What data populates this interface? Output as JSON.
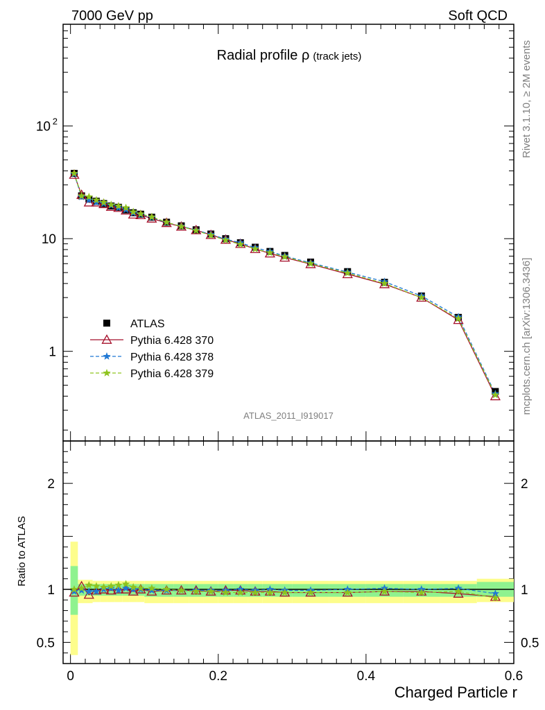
{
  "header": {
    "left": "7000 GeV pp",
    "right": "Soft QCD"
  },
  "side_labels": {
    "rivet": "Rivet 3.1.10, ≥ 2M events",
    "mcplots": "mcplots.cern.ch [arXiv:1306.3436]"
  },
  "plot_title": {
    "main": "Radial profile ρ",
    "sub": "(track jets)"
  },
  "analysis_label": "ATLAS_2011_I919017",
  "x_axis_label": "Charged Particle r",
  "ratio_axis_label": "Ratio to ATLAS",
  "legend": [
    {
      "label": "ATLAS",
      "color": "#000000",
      "marker": "square"
    },
    {
      "label": "Pythia 6.428 370",
      "color": "#a50f2a",
      "marker": "open-triangle"
    },
    {
      "label": "Pythia 6.428 378",
      "color": "#1f78d4",
      "marker": "star"
    },
    {
      "label": "Pythia 6.428 379",
      "color": "#8ec31e",
      "marker": "star"
    }
  ],
  "chart_data": {
    "type": "line",
    "x": [
      0.005,
      0.015,
      0.025,
      0.035,
      0.045,
      0.055,
      0.065,
      0.075,
      0.085,
      0.095,
      0.11,
      0.13,
      0.15,
      0.17,
      0.19,
      0.21,
      0.23,
      0.25,
      0.27,
      0.29,
      0.325,
      0.375,
      0.425,
      0.475,
      0.525,
      0.575
    ],
    "xlim": [
      -0.01,
      0.6
    ],
    "x_ticks": [
      {
        "v": 0,
        "label": "0"
      },
      {
        "v": 0.2,
        "label": "0.2"
      },
      {
        "v": 0.4,
        "label": "0.4"
      },
      {
        "v": 0.6,
        "label": "0.6"
      }
    ],
    "ylim": [
      0.16,
      800
    ],
    "yscale": "log",
    "y_ticks": [
      {
        "v": 1,
        "label": "1"
      },
      {
        "v": 10,
        "label": "10"
      },
      {
        "v": 100,
        "label": "10",
        "sup": "2"
      }
    ],
    "series": [
      {
        "name": "ATLAS",
        "values": [
          38,
          24,
          22.5,
          21.5,
          20.5,
          19.5,
          19,
          18,
          17,
          16.5,
          15.5,
          14,
          13,
          12,
          11,
          10,
          9.2,
          8.4,
          7.7,
          7.1,
          6.2,
          5.1,
          4.1,
          3.1,
          2.0,
          0.44
        ]
      },
      {
        "name": "Pythia 6.428 370",
        "values": [
          37,
          24.5,
          21,
          21,
          20.3,
          19.2,
          18.8,
          17.8,
          16.4,
          16.2,
          15.1,
          13.8,
          12.8,
          11.9,
          10.8,
          9.8,
          9.0,
          8.1,
          7.4,
          6.8,
          5.95,
          4.85,
          3.95,
          3.0,
          1.9,
          0.4
        ]
      },
      {
        "name": "Pythia 6.428 378",
        "values": [
          37.5,
          23.5,
          22,
          21,
          20.5,
          19.7,
          18.8,
          18.1,
          16.9,
          16.4,
          15.4,
          13.9,
          12.9,
          11.9,
          10.9,
          9.9,
          9.2,
          8.3,
          7.7,
          7.0,
          6.1,
          5.05,
          4.15,
          3.1,
          2.02,
          0.42
        ]
      },
      {
        "name": "Pythia 6.428 379",
        "values": [
          38,
          24,
          23.5,
          22,
          21,
          20,
          19.5,
          18.8,
          17.3,
          16.6,
          15.6,
          14,
          12.8,
          11.8,
          10.7,
          9.7,
          8.9,
          8.1,
          7.5,
          6.9,
          6.0,
          4.95,
          4.0,
          3.0,
          1.95,
          0.41
        ]
      }
    ],
    "ratio": {
      "ylim": [
        0.3,
        2.4
      ],
      "y_ticks": [
        {
          "v": 0.5,
          "label": "0.5"
        },
        {
          "v": 1,
          "label": "1"
        },
        {
          "v": 2,
          "label": "2"
        }
      ],
      "bins": [
        [
          0,
          0.01
        ],
        [
          0.01,
          0.02
        ],
        [
          0.02,
          0.03
        ],
        [
          0.03,
          0.04
        ],
        [
          0.04,
          0.05
        ],
        [
          0.05,
          0.06
        ],
        [
          0.06,
          0.07
        ],
        [
          0.07,
          0.08
        ],
        [
          0.08,
          0.09
        ],
        [
          0.09,
          0.1
        ],
        [
          0.1,
          0.12
        ],
        [
          0.12,
          0.14
        ],
        [
          0.14,
          0.16
        ],
        [
          0.16,
          0.18
        ],
        [
          0.18,
          0.2
        ],
        [
          0.2,
          0.22
        ],
        [
          0.22,
          0.24
        ],
        [
          0.24,
          0.26
        ],
        [
          0.26,
          0.28
        ],
        [
          0.28,
          0.3
        ],
        [
          0.3,
          0.35
        ],
        [
          0.35,
          0.4
        ],
        [
          0.4,
          0.45
        ],
        [
          0.45,
          0.5
        ],
        [
          0.5,
          0.55
        ],
        [
          0.55,
          0.6
        ]
      ],
      "stat_band": [
        [
          0.76,
          1.22
        ],
        [
          0.94,
          1.05
        ],
        [
          0.94,
          1.05
        ],
        [
          0.94,
          1.05
        ],
        [
          0.94,
          1.05
        ],
        [
          0.94,
          1.05
        ],
        [
          0.94,
          1.05
        ],
        [
          0.94,
          1.05
        ],
        [
          0.94,
          1.05
        ],
        [
          0.94,
          1.05
        ],
        [
          0.93,
          1.05
        ],
        [
          0.93,
          1.05
        ],
        [
          0.93,
          1.05
        ],
        [
          0.93,
          1.05
        ],
        [
          0.93,
          1.05
        ],
        [
          0.93,
          1.05
        ],
        [
          0.93,
          1.05
        ],
        [
          0.93,
          1.05
        ],
        [
          0.93,
          1.05
        ],
        [
          0.93,
          1.05
        ],
        [
          0.93,
          1.05
        ],
        [
          0.93,
          1.05
        ],
        [
          0.93,
          1.05
        ],
        [
          0.93,
          1.05
        ],
        [
          0.93,
          1.05
        ],
        [
          0.93,
          1.07
        ]
      ],
      "total_band": [
        [
          0.38,
          1.45
        ],
        [
          0.87,
          1.09
        ],
        [
          0.87,
          1.09
        ],
        [
          0.88,
          1.08
        ],
        [
          0.88,
          1.08
        ],
        [
          0.88,
          1.08
        ],
        [
          0.88,
          1.08
        ],
        [
          0.88,
          1.08
        ],
        [
          0.88,
          1.08
        ],
        [
          0.88,
          1.08
        ],
        [
          0.87,
          1.08
        ],
        [
          0.87,
          1.08
        ],
        [
          0.87,
          1.08
        ],
        [
          0.87,
          1.08
        ],
        [
          0.87,
          1.08
        ],
        [
          0.87,
          1.08
        ],
        [
          0.87,
          1.08
        ],
        [
          0.87,
          1.08
        ],
        [
          0.87,
          1.08
        ],
        [
          0.87,
          1.08
        ],
        [
          0.87,
          1.08
        ],
        [
          0.87,
          1.08
        ],
        [
          0.87,
          1.08
        ],
        [
          0.87,
          1.08
        ],
        [
          0.87,
          1.08
        ],
        [
          0.88,
          1.1
        ]
      ],
      "series": [
        {
          "name": "Pythia 6.428 370",
          "values": [
            0.97,
            1.03,
            0.95,
            0.99,
            1.0,
            0.99,
            1.0,
            1.0,
            0.98,
            1.0,
            0.98,
            0.99,
            0.99,
            0.99,
            0.98,
            0.99,
            0.99,
            0.98,
            0.98,
            0.97,
            0.97,
            0.97,
            0.98,
            0.98,
            0.96,
            0.93
          ]
        },
        {
          "name": "Pythia 6.428 378",
          "values": [
            0.98,
            0.99,
            0.98,
            0.98,
            1.0,
            1.01,
            0.99,
            1.01,
            1.0,
            1.0,
            0.99,
            0.99,
            0.99,
            0.99,
            0.99,
            0.99,
            1.0,
            0.99,
            1.0,
            0.99,
            0.99,
            1.0,
            1.01,
            1.0,
            1.01,
            0.96
          ]
        },
        {
          "name": "Pythia 6.428 379",
          "values": [
            1.0,
            1.01,
            1.04,
            1.03,
            1.02,
            1.03,
            1.04,
            1.05,
            1.02,
            1.01,
            1.01,
            1.0,
            0.99,
            0.98,
            0.98,
            0.97,
            0.97,
            0.97,
            0.97,
            0.97,
            0.97,
            0.97,
            0.98,
            0.97,
            0.98,
            0.92
          ]
        }
      ]
    },
    "band_colors": {
      "stat": "#8ff28f",
      "total": "#fdfd8c"
    }
  }
}
